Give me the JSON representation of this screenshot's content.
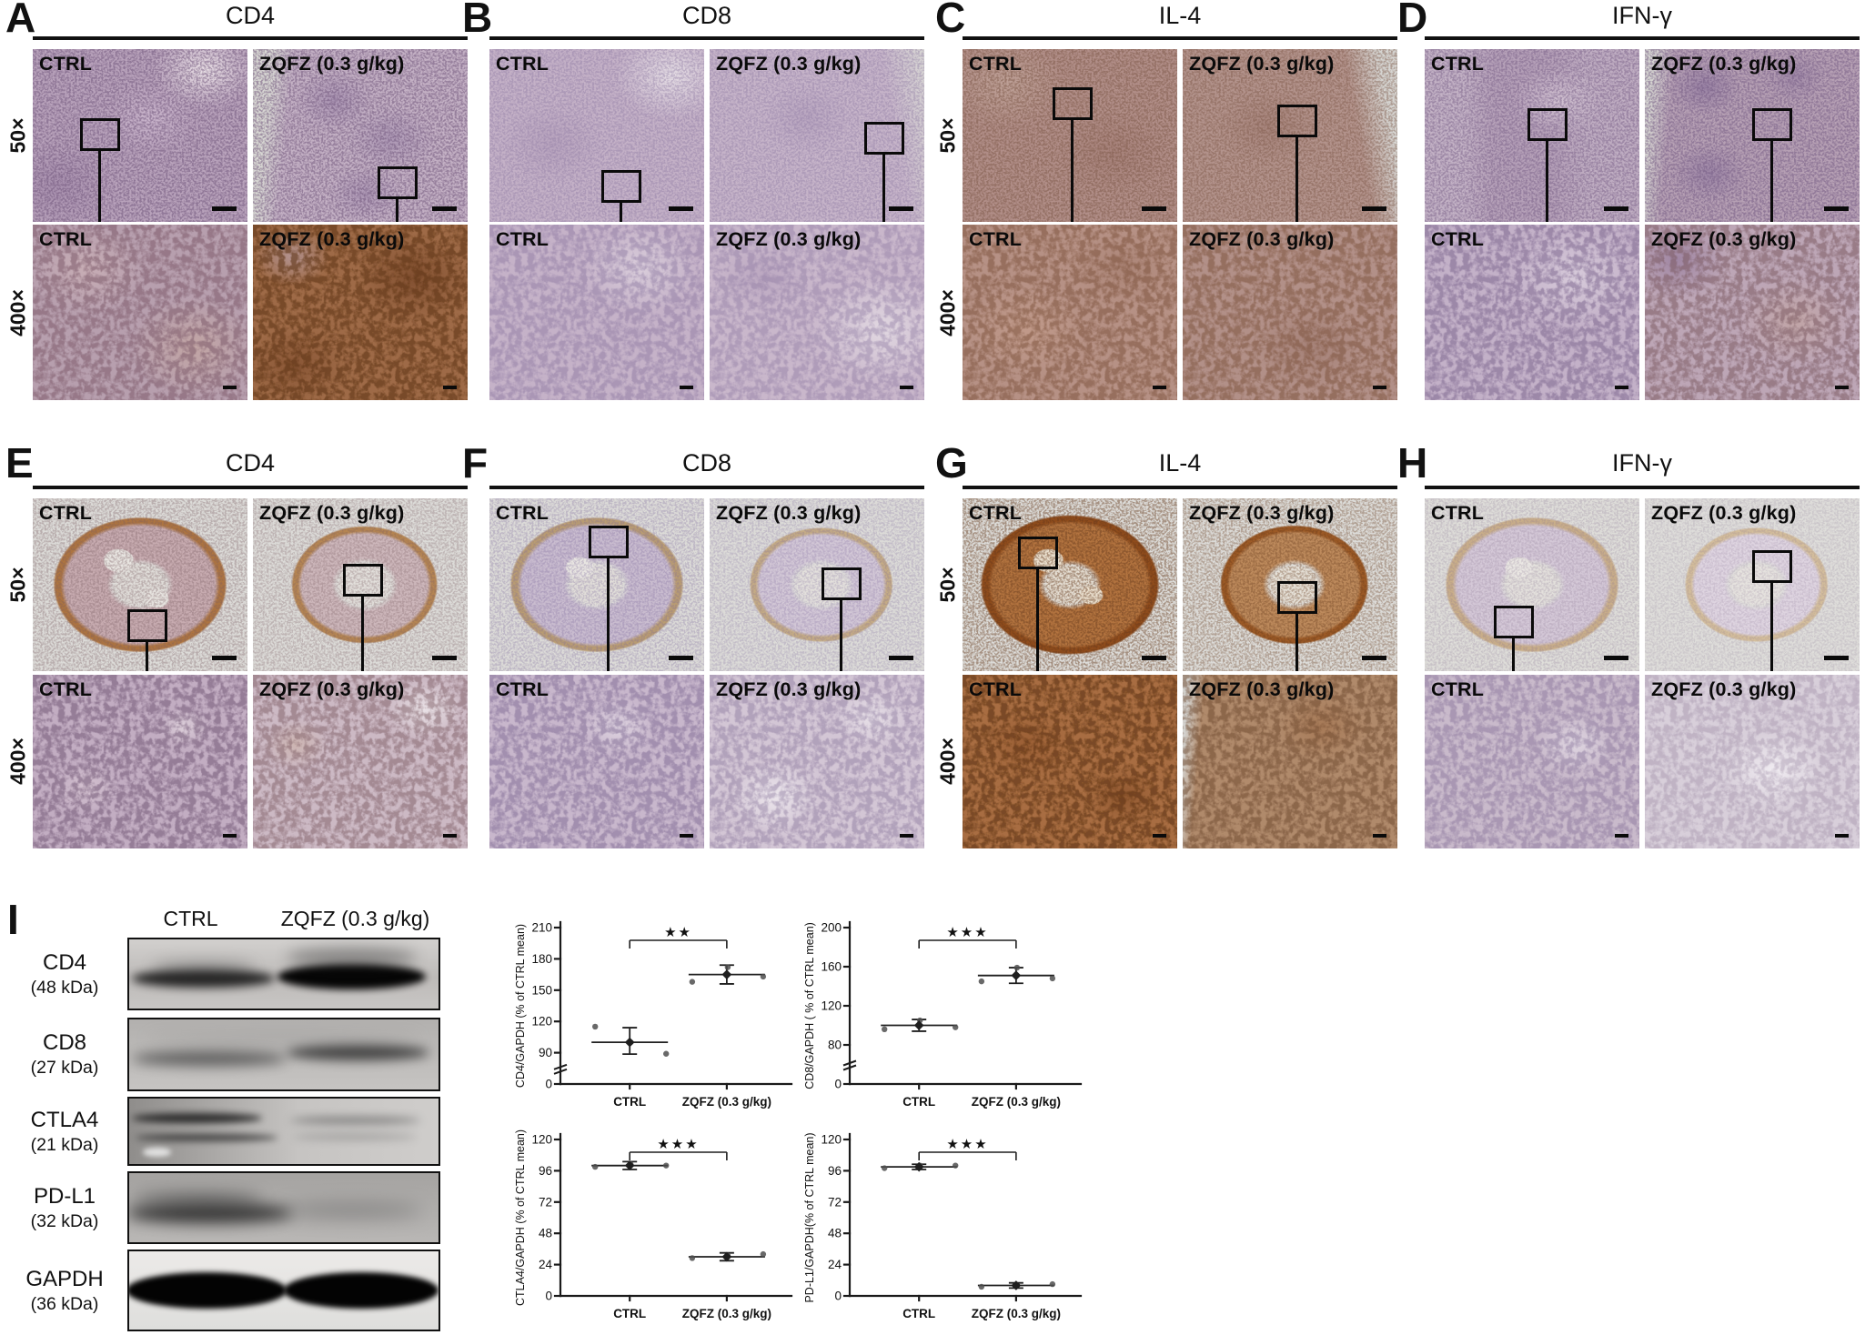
{
  "figure": {
    "labels": {
      "ctrl": "CTRL",
      "zqfz": "ZQFZ (0.3 g/kg)",
      "mag_50": "50×",
      "mag_400": "400×"
    }
  },
  "panels": [
    {
      "letter": "A",
      "marker": "CD4"
    },
    {
      "letter": "B",
      "marker": "CD8"
    },
    {
      "letter": "C",
      "marker": "IL-4"
    },
    {
      "letter": "D",
      "marker": "IFN-γ"
    },
    {
      "letter": "E",
      "marker": "CD4"
    },
    {
      "letter": "F",
      "marker": "CD8"
    },
    {
      "letter": "G",
      "marker": "IL-4"
    },
    {
      "letter": "H",
      "marker": "IFN-γ"
    }
  ],
  "western_blot": {
    "letter": "I",
    "lane_labels": [
      "CTRL",
      "ZQFZ (0.3 g/kg)"
    ],
    "blots": [
      {
        "protein": "CD4",
        "molecular_weight": "(48 kDa)"
      },
      {
        "protein": "CD8",
        "molecular_weight": "(27 kDa)"
      },
      {
        "protein": "CTLA4",
        "molecular_weight": "(21 kDa)"
      },
      {
        "protein": "PD-L1",
        "molecular_weight": "(32 kDa)"
      },
      {
        "protein": "GAPDH",
        "molecular_weight": "(36 kDa)"
      }
    ]
  },
  "chart_data": [
    {
      "type": "scatter",
      "ylabel": "CD4/GAPDH (% of CTRL mean)",
      "categories": [
        "CTRL",
        "ZQFZ (0.3 g/kg)"
      ],
      "yticks": [
        0,
        90,
        120,
        150,
        180,
        210
      ],
      "ylim": [
        0,
        210
      ],
      "axis_break": true,
      "significance": "**",
      "series": [
        {
          "name": "CTRL",
          "points": [
            115,
            100,
            87
          ],
          "mean": 100,
          "sem": 14
        },
        {
          "name": "ZQFZ (0.3 g/kg)",
          "points": [
            158,
            172,
            163
          ],
          "mean": 165,
          "sem": 9
        }
      ]
    },
    {
      "type": "scatter",
      "ylabel": "CD8/GAPDH ( % of CTRL mean)",
      "categories": [
        "CTRL",
        "ZQFZ (0.3 g/kg)"
      ],
      "yticks": [
        0,
        80,
        120,
        160,
        200
      ],
      "ylim": [
        0,
        200
      ],
      "axis_break": true,
      "significance": "***",
      "series": [
        {
          "name": "CTRL",
          "points": [
            96,
            105,
            98
          ],
          "mean": 100,
          "sem": 6
        },
        {
          "name": "ZQFZ (0.3 g/kg)",
          "points": [
            145,
            159,
            148
          ],
          "mean": 151,
          "sem": 8
        }
      ]
    },
    {
      "type": "scatter",
      "ylabel": "CTLA4/GAPDH (% of CTRL mean)",
      "categories": [
        "CTRL",
        "ZQFZ (0.3 g/kg)"
      ],
      "yticks": [
        0,
        24,
        48,
        72,
        96,
        120
      ],
      "ylim": [
        0,
        120
      ],
      "axis_break": false,
      "significance": "***",
      "series": [
        {
          "name": "CTRL",
          "points": [
            99,
            101,
            100
          ],
          "mean": 100,
          "sem": 3
        },
        {
          "name": "ZQFZ (0.3 g/kg)",
          "points": [
            29,
            31,
            32
          ],
          "mean": 30,
          "sem": 3
        }
      ]
    },
    {
      "type": "scatter",
      "ylabel": "PD-L1/GAPDH(% of CTRL mean)",
      "categories": [
        "CTRL",
        "ZQFZ (0.3 g/kg)"
      ],
      "yticks": [
        0,
        24,
        48,
        72,
        96,
        120
      ],
      "ylim": [
        0,
        120
      ],
      "axis_break": false,
      "significance": "***",
      "series": [
        {
          "name": "CTRL",
          "points": [
            98,
            100,
            100
          ],
          "mean": 99,
          "sem": 2
        },
        {
          "name": "ZQFZ (0.3 g/kg)",
          "points": [
            7,
            8,
            9
          ],
          "mean": 8,
          "sem": 2
        }
      ]
    }
  ]
}
